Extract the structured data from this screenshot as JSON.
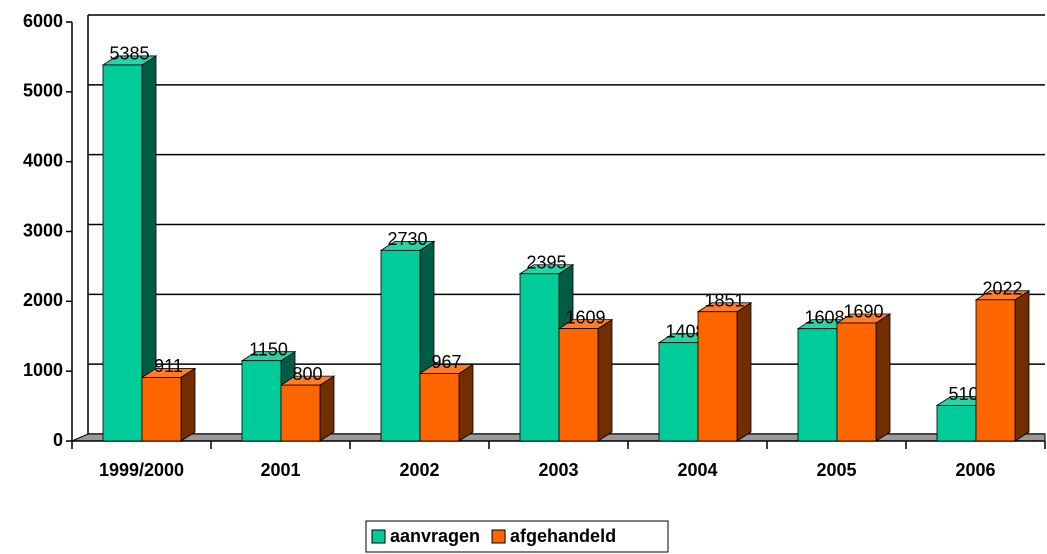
{
  "chart_data": {
    "type": "bar3d",
    "categories": [
      "1999/2000",
      "2001",
      "2002",
      "2003",
      "2004",
      "2005",
      "2006"
    ],
    "series": [
      {
        "name": "aanvragen",
        "color": "#00cc99",
        "values": [
          5385,
          1150,
          2730,
          2395,
          1408,
          1608,
          510
        ]
      },
      {
        "name": "afgehandeld",
        "color": "#ff6600",
        "values": [
          911,
          800,
          967,
          1609,
          1851,
          1690,
          2022
        ]
      }
    ],
    "ylim": [
      0,
      6000
    ],
    "yticks": [
      0,
      1000,
      2000,
      3000,
      4000,
      5000,
      6000
    ],
    "grid": true,
    "legend": "bottom"
  }
}
